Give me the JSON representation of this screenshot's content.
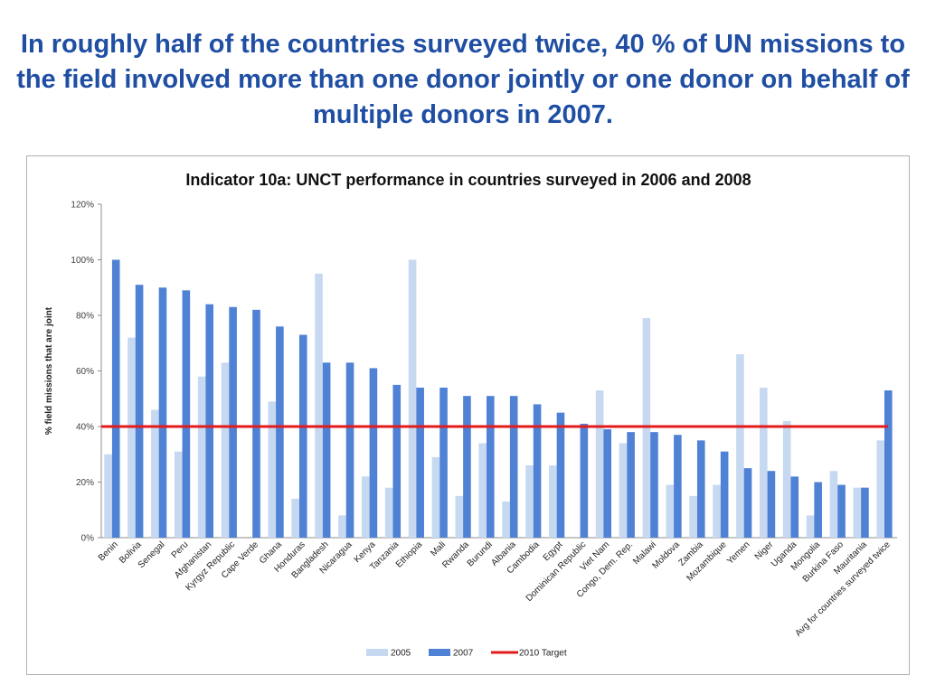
{
  "slide": {
    "title": "In roughly half of the countries surveyed twice, 40 % of UN missions to the field involved more than one donor jointly or one donor on behalf of multiple donors in 2007."
  },
  "chart_data": {
    "type": "bar",
    "title": "Indicator 10a: UNCT performance in countries surveyed in 2006 and 2008",
    "xlabel": "",
    "ylabel": "% field missions that are joint",
    "ylim": [
      0,
      120
    ],
    "yticks": [
      "0%",
      "20%",
      "40%",
      "60%",
      "80%",
      "100%",
      "120%"
    ],
    "grid": false,
    "legend_position": "bottom",
    "categories": [
      "Benin",
      "Bolivia",
      "Senegal",
      "Peru",
      "Afghanistan",
      "Kyrgyz Republic",
      "Cape Verde",
      "Ghana",
      "Honduras",
      "Bangladesh",
      "Nicaragua",
      "Kenya",
      "Tanzania",
      "Ethiopia",
      "Mali",
      "Rwanda",
      "Burundi",
      "Albania",
      "Cambodia",
      "Egypt",
      "Dominican Republic",
      "Viet Nam",
      "Congo, Dem. Rep.",
      "Malawi",
      "Moldova",
      "Zambia",
      "Mozambique",
      "Yemen",
      "Niger",
      "Uganda",
      "Mongolia",
      "Burkina Faso",
      "Mauritania",
      "Avg for countries surveyed twice"
    ],
    "series": [
      {
        "name": "2005",
        "color": "#c6d9f1",
        "values": [
          30,
          72,
          46,
          31,
          58,
          63,
          0,
          49,
          14,
          95,
          8,
          22,
          18,
          100,
          29,
          15,
          34,
          13,
          26,
          26,
          0,
          53,
          34,
          79,
          19,
          15,
          19,
          66,
          54,
          42,
          8,
          24,
          18,
          35
        ]
      },
      {
        "name": "2007",
        "color": "#4f81d4",
        "values": [
          100,
          91,
          90,
          89,
          84,
          83,
          82,
          76,
          73,
          63,
          63,
          61,
          55,
          54,
          54,
          51,
          51,
          51,
          48,
          45,
          41,
          39,
          38,
          38,
          37,
          35,
          31,
          25,
          24,
          22,
          20,
          19,
          18,
          53
        ]
      },
      {
        "name": "2010 Target",
        "color": "#e31b1b",
        "type": "line",
        "value": 40
      }
    ]
  }
}
